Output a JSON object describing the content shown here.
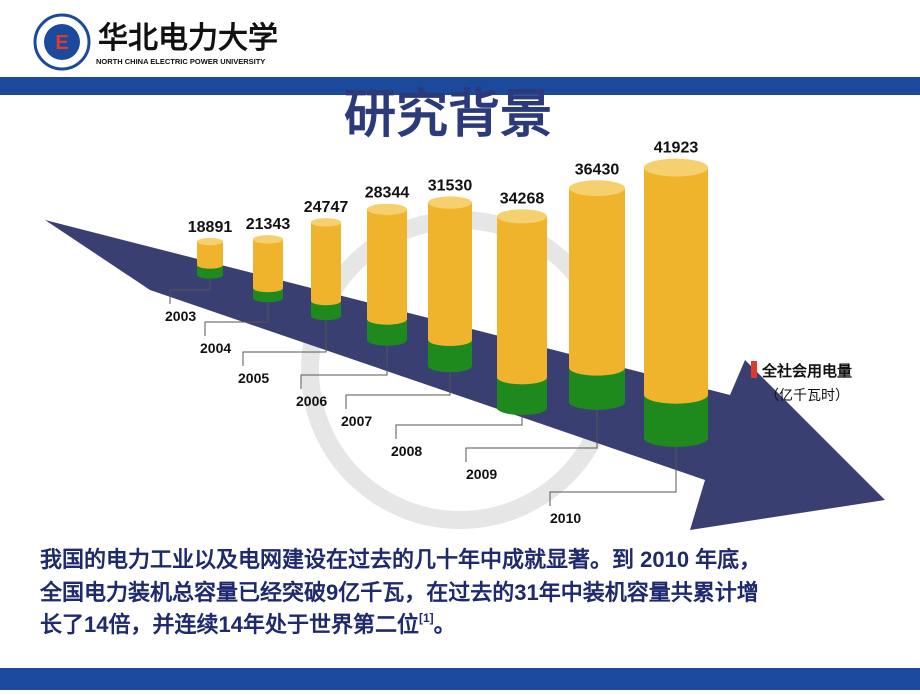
{
  "header": {
    "university_name": "华北电力大学",
    "university_name_en": "NORTH CHINA ELECTRIC POWER UNIVERSITY"
  },
  "chart_data": {
    "type": "bar",
    "title": "研究背景",
    "categories": [
      "2003",
      "2004",
      "2005",
      "2006",
      "2007",
      "2008",
      "2009",
      "2010"
    ],
    "series": [
      {
        "name": "全社会用电量",
        "color": "#f0b42c",
        "values": [
          18891,
          21343,
          24747,
          28344,
          31530,
          34268,
          36430,
          41923
        ]
      }
    ],
    "ylabel": "（亿千瓦时）"
  },
  "paragraph": {
    "lines": [
      "我国的电力工业以及电网建设在过去的几十年中成就显著。到 2010 年底，",
      "全国电力装机总容量已经突破9亿千瓦，在过去的31年中装机容量共累计增",
      "长了14倍，并连续14年处于世界第二位"
    ],
    "citation": "[1]",
    "end": "。"
  }
}
